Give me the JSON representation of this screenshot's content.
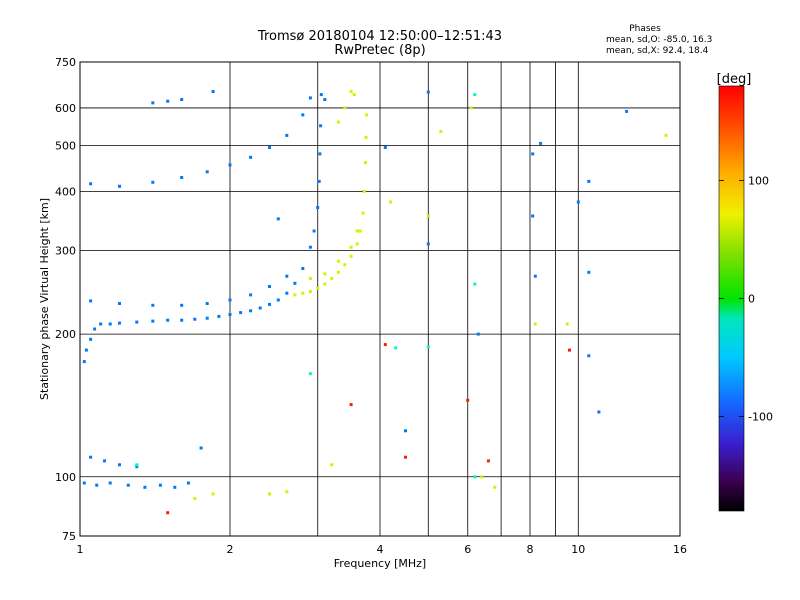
{
  "chart_data": {
    "type": "scatter",
    "title": "Tromsø 20180104 12:50:00–12:51:43",
    "subtitle": "RwPretec (8p)",
    "xlabel": "Frequency [MHz]",
    "ylabel": "Stationary phase Virtual Height [km]",
    "x_scale": "log2",
    "y_scale": "log",
    "xlim": [
      1,
      16
    ],
    "ylim": [
      75,
      750
    ],
    "x_ticks": [
      1,
      2,
      4,
      6,
      8,
      10,
      16
    ],
    "y_ticks": [
      75,
      100,
      200,
      300,
      400,
      500,
      600,
      750
    ],
    "x_gridlines": [
      2,
      3,
      4,
      5,
      6,
      7,
      8,
      9,
      10
    ],
    "y_gridlines": [
      100,
      200,
      300,
      400,
      500,
      600
    ],
    "grid": true,
    "legend": {
      "title": "Phases",
      "line1": "mean, sd,O: -85.0, 16.3",
      "line2": "mean, sd,X:  92.4, 18.4"
    },
    "colorbar": {
      "label": "[deg]",
      "min": -180,
      "max": 180,
      "ticks": [
        100,
        0,
        -100
      ],
      "placement": "right"
    },
    "series": [
      {
        "name": "O",
        "phase_deg": -85,
        "points": [
          [
            1.02,
            175
          ],
          [
            1.03,
            185
          ],
          [
            1.05,
            195
          ],
          [
            1.07,
            205
          ],
          [
            1.1,
            210
          ],
          [
            1.15,
            210
          ],
          [
            1.2,
            211
          ],
          [
            1.3,
            212
          ],
          [
            1.4,
            213
          ],
          [
            1.5,
            214
          ],
          [
            1.6,
            214
          ],
          [
            1.7,
            215
          ],
          [
            1.8,
            216
          ],
          [
            1.9,
            218
          ],
          [
            2.0,
            220
          ],
          [
            2.1,
            222
          ],
          [
            2.2,
            224
          ],
          [
            2.3,
            227
          ],
          [
            2.4,
            231
          ],
          [
            2.5,
            236
          ],
          [
            2.6,
            244
          ],
          [
            2.7,
            256
          ],
          [
            2.8,
            275
          ],
          [
            2.9,
            305
          ],
          [
            2.95,
            330
          ],
          [
            3.0,
            370
          ],
          [
            3.02,
            420
          ],
          [
            3.03,
            480
          ],
          [
            3.04,
            550
          ],
          [
            3.05,
            640
          ],
          [
            1.05,
            235
          ],
          [
            1.2,
            232
          ],
          [
            1.4,
            230
          ],
          [
            1.6,
            230
          ],
          [
            1.8,
            232
          ],
          [
            2.0,
            236
          ],
          [
            2.2,
            242
          ],
          [
            2.4,
            252
          ],
          [
            2.6,
            265
          ],
          [
            1.05,
            415
          ],
          [
            1.2,
            410
          ],
          [
            1.4,
            418
          ],
          [
            1.6,
            428
          ],
          [
            1.8,
            440
          ],
          [
            2.0,
            455
          ],
          [
            2.2,
            472
          ],
          [
            2.4,
            495
          ],
          [
            2.6,
            525
          ],
          [
            2.8,
            580
          ],
          [
            2.9,
            630
          ],
          [
            1.4,
            615
          ],
          [
            1.5,
            620
          ],
          [
            1.6,
            625
          ],
          [
            1.85,
            650
          ],
          [
            1.02,
            97
          ],
          [
            1.08,
            96
          ],
          [
            1.15,
            97
          ],
          [
            1.25,
            96
          ],
          [
            1.35,
            95
          ],
          [
            1.45,
            96
          ],
          [
            1.55,
            95
          ],
          [
            1.65,
            97
          ],
          [
            1.05,
            110
          ],
          [
            1.12,
            108
          ],
          [
            1.2,
            106
          ],
          [
            1.3,
            105
          ],
          [
            1.75,
            115
          ],
          [
            2.5,
            350
          ],
          [
            3.1,
            625
          ],
          [
            4.1,
            495
          ],
          [
            4.5,
            125
          ],
          [
            5.0,
            310
          ],
          [
            5.0,
            648
          ],
          [
            6.3,
            200
          ],
          [
            8.1,
            480
          ],
          [
            8.1,
            355
          ],
          [
            8.2,
            265
          ],
          [
            8.4,
            505
          ],
          [
            10.0,
            380
          ],
          [
            10.5,
            420
          ],
          [
            10.5,
            270
          ],
          [
            10.5,
            180
          ],
          [
            11.0,
            137
          ],
          [
            12.5,
            590
          ]
        ]
      },
      {
        "name": "X",
        "phase_deg": 92,
        "points": [
          [
            2.7,
            242
          ],
          [
            2.8,
            244
          ],
          [
            2.9,
            246
          ],
          [
            3.0,
            250
          ],
          [
            3.1,
            255
          ],
          [
            3.2,
            262
          ],
          [
            3.3,
            270
          ],
          [
            3.4,
            280
          ],
          [
            3.5,
            292
          ],
          [
            3.6,
            310
          ],
          [
            3.65,
            330
          ],
          [
            3.7,
            360
          ],
          [
            3.72,
            400
          ],
          [
            3.74,
            460
          ],
          [
            3.75,
            520
          ],
          [
            3.76,
            580
          ],
          [
            2.9,
            262
          ],
          [
            3.1,
            268
          ],
          [
            3.3,
            285
          ],
          [
            3.5,
            305
          ],
          [
            3.6,
            330
          ],
          [
            3.3,
            560
          ],
          [
            3.4,
            600
          ],
          [
            3.5,
            650
          ],
          [
            3.55,
            640
          ],
          [
            1.7,
            90
          ],
          [
            1.85,
            92
          ],
          [
            2.4,
            92
          ],
          [
            2.6,
            93
          ],
          [
            3.2,
            106
          ],
          [
            4.2,
            380
          ],
          [
            5.0,
            355
          ],
          [
            5.3,
            535
          ],
          [
            6.1,
            600
          ],
          [
            6.4,
            100
          ],
          [
            6.8,
            95
          ],
          [
            8.2,
            210
          ],
          [
            9.5,
            210
          ],
          [
            15.0,
            525
          ]
        ]
      },
      {
        "name": "other",
        "phase_deg": 170,
        "points": [
          [
            1.5,
            84
          ],
          [
            3.5,
            142
          ],
          [
            4.1,
            190
          ],
          [
            4.5,
            110
          ],
          [
            6.0,
            145
          ],
          [
            6.6,
            108
          ],
          [
            9.6,
            185
          ]
        ]
      },
      {
        "name": "other",
        "phase_deg": -35,
        "points": [
          [
            1.3,
            106
          ],
          [
            2.9,
            165
          ],
          [
            4.3,
            187
          ],
          [
            5.0,
            188
          ],
          [
            6.2,
            100
          ],
          [
            6.2,
            255
          ],
          [
            6.2,
            640
          ]
        ]
      }
    ]
  }
}
